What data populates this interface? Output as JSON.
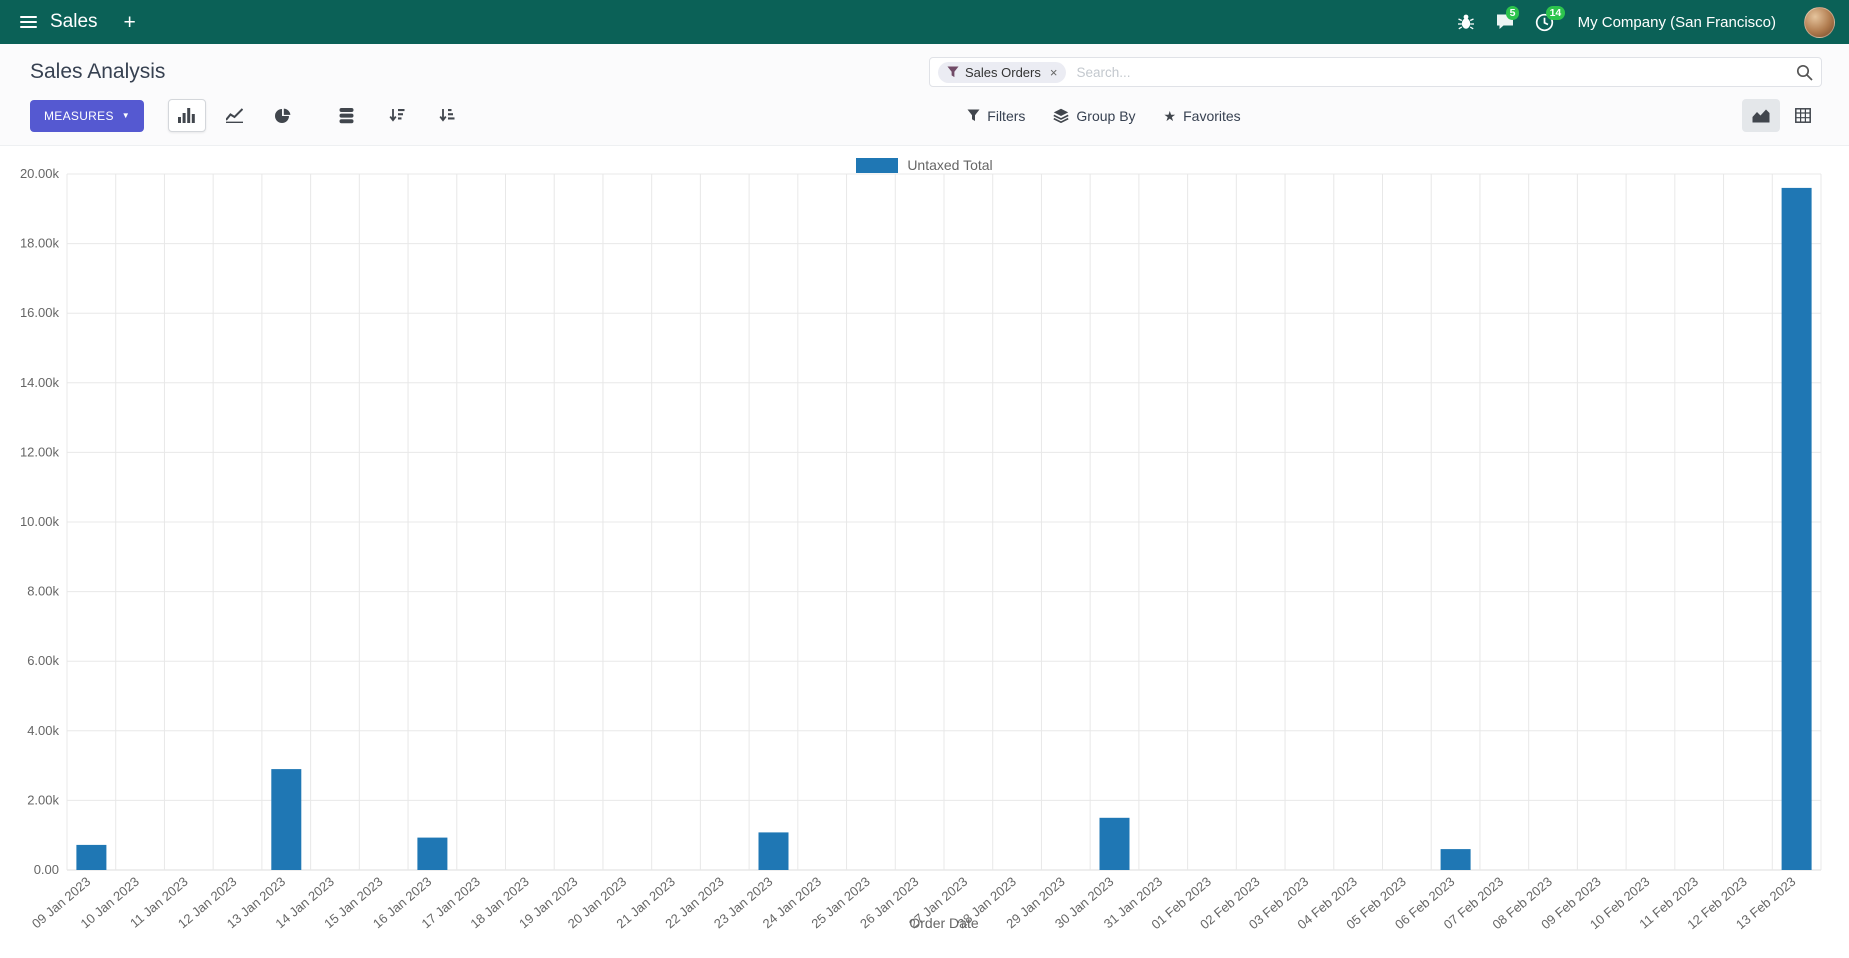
{
  "colors": {
    "navbar_bg": "#0b6157",
    "primary": "#5559d1",
    "badge": "#2dc44d",
    "panel_bg": "#fbfbfc"
  },
  "icons": {
    "plus": "+",
    "caret_down": "▼",
    "star": "★",
    "remove": "×"
  },
  "navbar": {
    "app_name": "Sales",
    "company": "My Company (San Francisco)",
    "messages_badge": "5",
    "activities_badge": "14"
  },
  "control_panel": {
    "title": "Sales Analysis",
    "search": {
      "facet_label": "Sales Orders",
      "placeholder": "Search..."
    },
    "toolbar": {
      "measures": "MEASURES",
      "filters": "Filters",
      "group_by": "Group By",
      "favorites": "Favorites"
    }
  },
  "chart_data": {
    "type": "bar",
    "title": "",
    "xlabel": "Order Date",
    "ylabel": "",
    "ylim": [
      0,
      20000
    ],
    "ytick_step": 2000,
    "ytick_labels": [
      "0.00",
      "2.00k",
      "4.00k",
      "6.00k",
      "8.00k",
      "10.00k",
      "12.00k",
      "14.00k",
      "16.00k",
      "18.00k",
      "20.00k"
    ],
    "grid": true,
    "legend_position": "top",
    "categories": [
      "09 Jan 2023",
      "10 Jan 2023",
      "11 Jan 2023",
      "12 Jan 2023",
      "13 Jan 2023",
      "14 Jan 2023",
      "15 Jan 2023",
      "16 Jan 2023",
      "17 Jan 2023",
      "18 Jan 2023",
      "19 Jan 2023",
      "20 Jan 2023",
      "21 Jan 2023",
      "22 Jan 2023",
      "23 Jan 2023",
      "24 Jan 2023",
      "25 Jan 2023",
      "26 Jan 2023",
      "27 Jan 2023",
      "28 Jan 2023",
      "29 Jan 2023",
      "30 Jan 2023",
      "31 Jan 2023",
      "01 Feb 2023",
      "02 Feb 2023",
      "03 Feb 2023",
      "04 Feb 2023",
      "05 Feb 2023",
      "06 Feb 2023",
      "07 Feb 2023",
      "08 Feb 2023",
      "09 Feb 2023",
      "10 Feb 2023",
      "11 Feb 2023",
      "12 Feb 2023",
      "13 Feb 2023"
    ],
    "series": [
      {
        "name": "Untaxed Total",
        "color": "#1f77b4",
        "values": [
          720,
          0,
          0,
          0,
          2900,
          0,
          0,
          930,
          0,
          0,
          0,
          0,
          0,
          0,
          1080,
          0,
          0,
          0,
          0,
          0,
          0,
          1500,
          0,
          0,
          0,
          0,
          0,
          0,
          600,
          0,
          0,
          0,
          0,
          0,
          0,
          19600
        ]
      }
    ]
  }
}
